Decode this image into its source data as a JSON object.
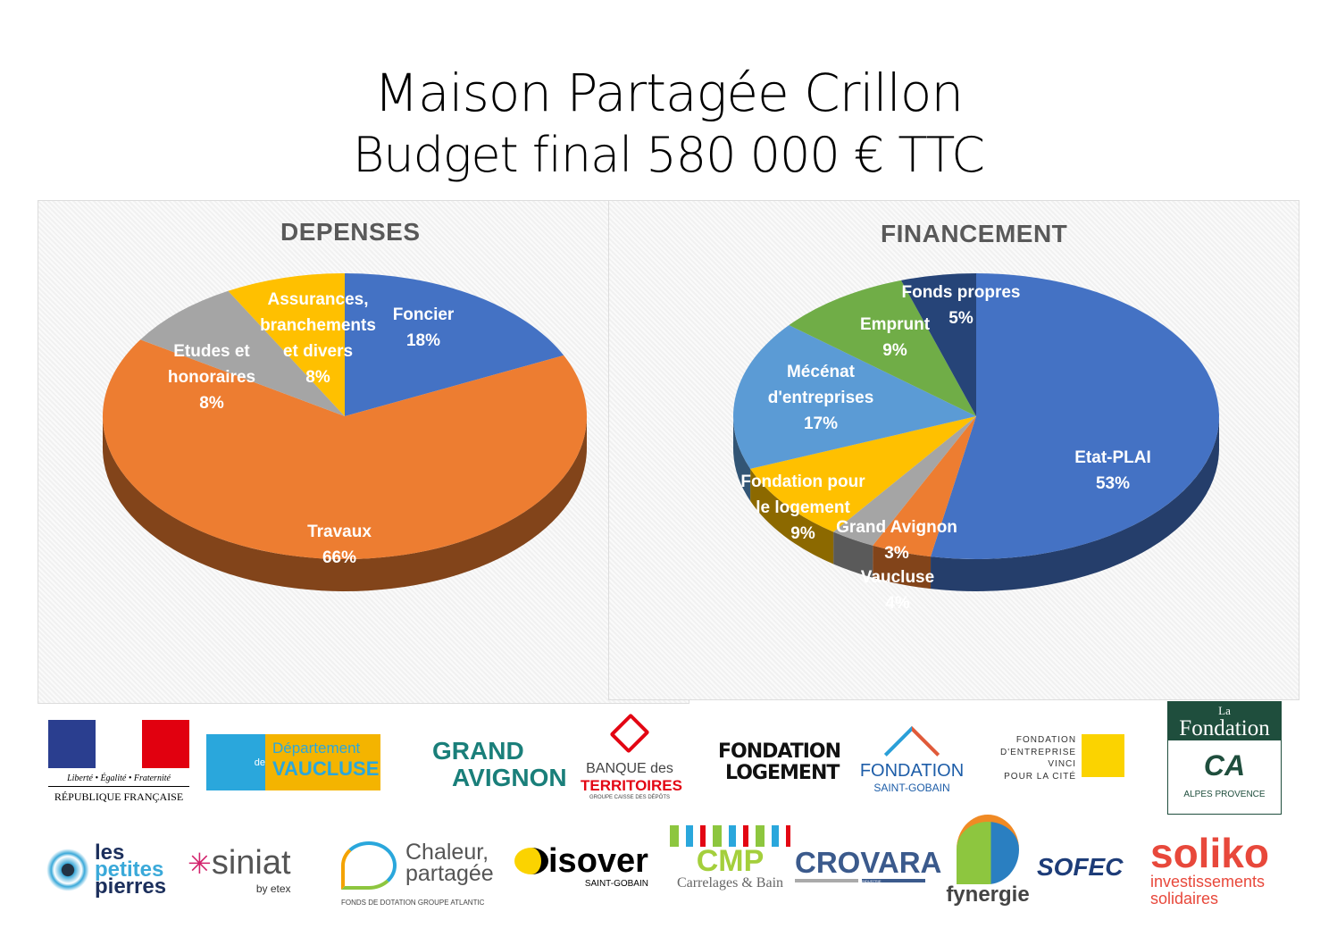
{
  "title": "Maison Partagée Crillon",
  "subtitle": "Budget final 580 000 € TTC",
  "chart_data": [
    {
      "type": "pie",
      "title": "DEPENSES",
      "start": "top",
      "direction": "clockwise",
      "style": "3d",
      "slices": [
        {
          "label": "Foncier",
          "value": 18,
          "pct_label": "18%",
          "color": "#4472c4"
        },
        {
          "label": "Travaux",
          "value": 66,
          "pct_label": "66%",
          "color": "#ed7d31"
        },
        {
          "label": "Etudes et honoraires",
          "value": 8,
          "pct_label": "8%",
          "color": "#a5a5a5"
        },
        {
          "label": "Assurances, branchements et divers",
          "value": 8,
          "pct_label": "8%",
          "color": "#ffc000"
        }
      ]
    },
    {
      "type": "pie",
      "title": "FINANCEMENT",
      "start": "top",
      "direction": "clockwise",
      "style": "3d",
      "slices": [
        {
          "label": "Etat-PLAI",
          "value": 53,
          "pct_label": "53%",
          "color": "#4472c4"
        },
        {
          "label": "Vaucluse",
          "value": 4,
          "pct_label": "4%",
          "color": "#ed7d31"
        },
        {
          "label": "Grand Avignon",
          "value": 3,
          "pct_label": "3%",
          "color": "#a5a5a5"
        },
        {
          "label": "Fondation pour le logement",
          "value": 9,
          "pct_label": "9%",
          "color": "#ffc000"
        },
        {
          "label": "Mécénat d'entreprises",
          "value": 17,
          "pct_label": "17%",
          "color": "#5b9bd5"
        },
        {
          "label": "Emprunt",
          "value": 9,
          "pct_label": "9%",
          "color": "#70ad47"
        },
        {
          "label": "Fonds propres",
          "value": 5,
          "pct_label": "5%",
          "color": "#264478"
        }
      ]
    }
  ],
  "labels": {
    "d": [
      [
        "Foncier",
        "18%"
      ],
      [
        "Travaux",
        "66%"
      ],
      [
        "Etudes et",
        "honoraires",
        "8%"
      ],
      [
        "Assurances,",
        "branchements",
        "et divers",
        "8%"
      ]
    ],
    "f": [
      [
        "Etat-PLAI",
        "53%"
      ],
      [
        "Vaucluse",
        "4%"
      ],
      [
        "Grand Avignon",
        "3%"
      ],
      [
        "Fondation pour",
        "le logement",
        "9%"
      ],
      [
        "Mécénat",
        "d'entreprises",
        "17%"
      ],
      [
        "Emprunt",
        "9%"
      ],
      [
        "Fonds propres",
        "5%"
      ]
    ]
  },
  "logos": {
    "rf": {
      "motto": "Liberté • Égalité • Fraternité",
      "name": "RÉPUBLIQUE FRANÇAISE"
    },
    "vaucluse": {
      "line1": "Département",
      "de": "de",
      "line2": "VAUCLUSE"
    },
    "grand_avignon": {
      "line1": "GRAND",
      "line2": "AVIGNON"
    },
    "banque": {
      "line1": "BANQUE des",
      "line2": "TERRITOIRES",
      "line3": "GROUPE CAISSE DES DÉPÔTS"
    },
    "fondation_logement": {
      "line1": "FONDATION",
      "line2": "LOGEMENT"
    },
    "saint_gobain": {
      "line1": "FONDATION",
      "line2": "SAINT-GOBAIN"
    },
    "vinci": {
      "lines": [
        "FONDATION",
        "D'ENTREPRISE",
        "VINCI",
        "POUR LA CITÉ"
      ]
    },
    "ca": {
      "line1": "La",
      "line2": "Fondation",
      "line3": "ALPES PROVENCE",
      "mark": "CA"
    },
    "petites_pierres": {
      "lines": [
        "les",
        "petites",
        "pierres"
      ]
    },
    "siniat": {
      "name": "siniat",
      "by": "by etex"
    },
    "chaleur": {
      "line1": "Chaleur,",
      "line2": "partagée",
      "line3": "FONDS DE DOTATION GROUPE ATLANTIC"
    },
    "isover": {
      "name": "isover",
      "sub": "SAINT-GOBAIN"
    },
    "cmp": {
      "name": "CMP",
      "sub": "Carrelages & Bain"
    },
    "crovara": {
      "name": "CROVARA",
      "sub": "INDUSTRIE"
    },
    "fynergie": {
      "name": "fynergie"
    },
    "sofec": {
      "name": "SOFEC"
    },
    "soliko": {
      "name": "soliko",
      "line1": "investissements",
      "line2": "solidaires"
    }
  }
}
